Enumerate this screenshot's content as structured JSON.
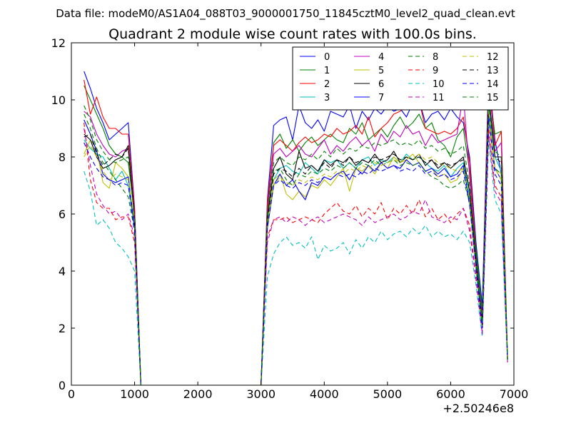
{
  "suptitle": "Data file: modeM0/AS1A04_088T03_9000001750_11845cztM0_level2_quad_clean.evt",
  "chart_data": {
    "type": "line",
    "title": "Quadrant 2 module wise count rates with 100.0s bins.",
    "xlabel": "",
    "ylabel": "",
    "x_offset_label": "+2.50246e8",
    "xlim": [
      0,
      7000
    ],
    "ylim": [
      0,
      12
    ],
    "x_ticks": [
      "0",
      "1000",
      "2000",
      "3000",
      "4000",
      "5000",
      "6000",
      "7000"
    ],
    "y_ticks": [
      "0",
      "2",
      "4",
      "6",
      "8",
      "10",
      "12"
    ],
    "grid": false,
    "legend_position": "top-right",
    "x": [
      200,
      300,
      400,
      500,
      600,
      700,
      800,
      900,
      1000,
      1100,
      1200,
      1300,
      1400,
      1500,
      1600,
      1700,
      1800,
      1900,
      2000,
      2100,
      2200,
      2300,
      2400,
      2500,
      2600,
      2700,
      2800,
      2900,
      3000,
      3100,
      3200,
      3300,
      3400,
      3500,
      3600,
      3700,
      3800,
      3900,
      4000,
      4100,
      4200,
      4300,
      4400,
      4500,
      4600,
      4700,
      4800,
      4900,
      5000,
      5100,
      5200,
      5300,
      5400,
      5500,
      5600,
      5700,
      5800,
      5900,
      6000,
      6100,
      6200,
      6300,
      6400,
      6500,
      6600,
      6700,
      6800,
      6900
    ],
    "series": [
      {
        "name": "0",
        "color": "#0000ff",
        "dash": "solid",
        "values": [
          11.0,
          10.4,
          9.7,
          9.2,
          8.6,
          8.8,
          9.0,
          9.2,
          6.2,
          0.0,
          0,
          0,
          0,
          0,
          0,
          0,
          0,
          0,
          0,
          0,
          0,
          0,
          0,
          0,
          0,
          0,
          0,
          0,
          0.0,
          6.5,
          9.1,
          9.3,
          9.4,
          8.6,
          9.8,
          9.2,
          9.0,
          9.3,
          8.9,
          9.6,
          9.5,
          9.4,
          9.8,
          9.0,
          9.6,
          9.3,
          9.7,
          9.5,
          9.8,
          9.6,
          9.7,
          9.4,
          9.9,
          10.0,
          9.2,
          9.5,
          9.6,
          9.3,
          9.7,
          9.4,
          9.2,
          8.0,
          5.0,
          2.8,
          11.0,
          8.6,
          7.4,
          1.0
        ]
      },
      {
        "name": "1",
        "color": "#008000",
        "dash": "solid",
        "values": [
          10.5,
          10.0,
          9.5,
          9.0,
          8.4,
          8.1,
          8.0,
          7.8,
          6.0,
          0.0,
          0,
          0,
          0,
          0,
          0,
          0,
          0,
          0,
          0,
          0,
          0,
          0,
          0,
          0,
          0,
          0,
          0,
          0,
          0.0,
          6.2,
          8.5,
          8.8,
          8.3,
          8.6,
          8.2,
          8.5,
          8.7,
          8.4,
          8.6,
          8.8,
          8.6,
          8.5,
          9.0,
          8.8,
          9.2,
          8.6,
          8.8,
          9.0,
          8.7,
          9.1,
          9.4,
          9.0,
          9.2,
          9.5,
          9.0,
          9.2,
          8.6,
          8.4,
          8.0,
          8.7,
          9.0,
          7.5,
          4.8,
          2.6,
          10.5,
          8.8,
          8.9,
          1.0
        ]
      },
      {
        "name": "2",
        "color": "#ff0000",
        "dash": "solid",
        "values": [
          10.7,
          9.5,
          10.1,
          9.4,
          9.0,
          9.0,
          8.8,
          8.8,
          6.1,
          0.0,
          0,
          0,
          0,
          0,
          0,
          0,
          0,
          0,
          0,
          0,
          0,
          0,
          0,
          0,
          0,
          0,
          0,
          0,
          0.0,
          6.4,
          8.4,
          8.6,
          8.4,
          8.2,
          8.5,
          8.7,
          8.5,
          8.6,
          8.8,
          8.7,
          9.0,
          8.8,
          8.9,
          9.1,
          8.8,
          9.4,
          8.7,
          9.0,
          9.2,
          9.5,
          9.6,
          9.8,
          9.9,
          10.0,
          9.0,
          8.9,
          8.8,
          8.9,
          8.8,
          9.0,
          9.4,
          7.8,
          4.6,
          2.2,
          11.0,
          8.4,
          8.9,
          0.8
        ]
      },
      {
        "name": "3",
        "color": "#00bfbf",
        "dash": "solid",
        "values": [
          8.6,
          8.3,
          8.1,
          8.0,
          7.6,
          7.2,
          7.5,
          7.0,
          5.5,
          0.0,
          0,
          0,
          0,
          0,
          0,
          0,
          0,
          0,
          0,
          0,
          0,
          0,
          0,
          0,
          0,
          0,
          0,
          0,
          0.0,
          5.8,
          7.2,
          7.6,
          7.7,
          7.5,
          7.4,
          7.8,
          7.6,
          7.4,
          7.9,
          7.8,
          7.9,
          7.6,
          7.8,
          7.6,
          7.9,
          8.0,
          7.7,
          7.9,
          7.8,
          8.0,
          7.8,
          8.1,
          7.9,
          8.0,
          7.8,
          7.6,
          7.5,
          7.7,
          7.3,
          7.6,
          7.8,
          6.6,
          4.4,
          2.2,
          9.8,
          8.0,
          7.5,
          0.9
        ]
      },
      {
        "name": "4",
        "color": "#bf00bf",
        "dash": "solid",
        "values": [
          9.6,
          9.4,
          8.8,
          8.4,
          8.1,
          8.0,
          8.2,
          8.3,
          5.9,
          0.0,
          0,
          0,
          0,
          0,
          0,
          0,
          0,
          0,
          0,
          0,
          0,
          0,
          0,
          0,
          0,
          0,
          0,
          0,
          0.0,
          6.1,
          8.1,
          8.3,
          8.0,
          8.2,
          8.4,
          8.1,
          8.0,
          8.3,
          8.6,
          8.1,
          8.4,
          8.2,
          8.5,
          8.7,
          8.4,
          8.6,
          8.2,
          8.8,
          8.5,
          8.9,
          8.7,
          9.1,
          8.8,
          8.9,
          8.4,
          8.8,
          8.5,
          8.6,
          8.7,
          8.8,
          10.2,
          7.3,
          4.5,
          2.4,
          10.8,
          8.2,
          8.5,
          0.9
        ]
      },
      {
        "name": "5",
        "color": "#bfbf00",
        "dash": "solid",
        "values": [
          8.1,
          8.6,
          8.3,
          7.1,
          6.9,
          7.8,
          7.6,
          7.3,
          5.6,
          0.0,
          0,
          0,
          0,
          0,
          0,
          0,
          0,
          0,
          0,
          0,
          0,
          0,
          0,
          0,
          0,
          0,
          0,
          0,
          0.0,
          5.6,
          7.2,
          7.4,
          6.7,
          6.5,
          6.8,
          6.6,
          7.0,
          6.9,
          7.2,
          7.0,
          7.3,
          7.6,
          6.8,
          7.6,
          7.5,
          7.7,
          7.4,
          7.8,
          7.6,
          8.0,
          7.8,
          7.9,
          8.1,
          7.8,
          7.5,
          7.6,
          7.3,
          7.4,
          7.1,
          7.2,
          7.6,
          6.4,
          4.3,
          2.1,
          9.6,
          7.6,
          7.4,
          0.9
        ]
      },
      {
        "name": "6",
        "color": "#000000",
        "dash": "solid",
        "values": [
          8.8,
          8.6,
          8.0,
          7.6,
          7.7,
          7.9,
          8.0,
          8.4,
          5.8,
          0.0,
          0,
          0,
          0,
          0,
          0,
          0,
          0,
          0,
          0,
          0,
          0,
          0,
          0,
          0,
          0,
          0,
          0,
          0,
          0.0,
          5.9,
          7.6,
          8.0,
          7.4,
          7.2,
          8.2,
          7.6,
          7.7,
          7.5,
          7.9,
          7.7,
          7.9,
          7.8,
          8.0,
          7.7,
          7.9,
          7.8,
          8.1,
          7.8,
          7.9,
          8.2,
          7.8,
          8.0,
          7.9,
          8.1,
          7.7,
          7.9,
          7.6,
          7.8,
          7.6,
          7.8,
          8.0,
          6.8,
          4.4,
          2.2,
          10.2,
          8.0,
          8.0,
          0.9
        ]
      },
      {
        "name": "7",
        "color": "#0000ff",
        "dash": "solid",
        "values": [
          9.3,
          8.8,
          8.2,
          7.4,
          7.2,
          7.1,
          7.2,
          7.3,
          5.5,
          0.0,
          0,
          0,
          0,
          0,
          0,
          0,
          0,
          0,
          0,
          0,
          0,
          0,
          0,
          0,
          0,
          0,
          0,
          0,
          0.0,
          5.5,
          7.0,
          7.4,
          7.0,
          7.2,
          6.8,
          6.5,
          7.1,
          7.0,
          7.3,
          7.2,
          7.4,
          7.5,
          7.2,
          7.6,
          7.4,
          7.7,
          7.5,
          7.8,
          7.6,
          7.7,
          7.6,
          7.9,
          7.7,
          7.8,
          7.5,
          7.6,
          7.4,
          7.6,
          7.3,
          7.4,
          7.7,
          6.4,
          4.2,
          2.0,
          9.5,
          7.6,
          7.2,
          0.9
        ]
      },
      {
        "name": "8",
        "color": "#008000",
        "dash": "dashed",
        "values": [
          9.5,
          9.0,
          8.3,
          7.8,
          7.5,
          7.2,
          6.9,
          6.6,
          5.4,
          0.0,
          0,
          0,
          0,
          0,
          0,
          0,
          0,
          0,
          0,
          0,
          0,
          0,
          0,
          0,
          0,
          0,
          0,
          0,
          0.0,
          5.8,
          7.5,
          7.6,
          7.2,
          7.0,
          7.4,
          7.3,
          7.5,
          7.4,
          7.6,
          7.5,
          7.7,
          7.6,
          7.8,
          7.6,
          7.8,
          7.7,
          7.9,
          7.7,
          7.8,
          7.9,
          7.7,
          7.8,
          7.7,
          7.8,
          7.5,
          7.3,
          7.2,
          7.0,
          6.9,
          7.0,
          7.2,
          6.4,
          4.1,
          2.0,
          9.4,
          7.6,
          7.4,
          0.9
        ]
      },
      {
        "name": "9",
        "color": "#ff0000",
        "dash": "dashed",
        "values": [
          9.2,
          7.2,
          6.4,
          6.2,
          6.2,
          5.8,
          5.9,
          5.9,
          5.0,
          0.0,
          0,
          0,
          0,
          0,
          0,
          0,
          0,
          0,
          0,
          0,
          0,
          0,
          0,
          0,
          0,
          0,
          0,
          0,
          0.0,
          5.2,
          5.8,
          5.8,
          5.9,
          5.7,
          5.8,
          5.9,
          5.8,
          5.7,
          6.0,
          6.2,
          6.4,
          6.1,
          6.0,
          6.3,
          5.9,
          6.2,
          6.0,
          6.4,
          5.8,
          6.2,
          6.0,
          6.3,
          6.0,
          6.5,
          5.9,
          6.2,
          5.8,
          6.0,
          5.7,
          6.0,
          6.2,
          5.6,
          3.8,
          1.8,
          9.0,
          7.0,
          6.6,
          0.8
        ]
      },
      {
        "name": "10",
        "color": "#00bfbf",
        "dash": "dashed",
        "values": [
          7.5,
          6.8,
          5.6,
          5.8,
          5.5,
          5.0,
          4.8,
          4.5,
          4.0,
          0.0,
          0,
          0,
          0,
          0,
          0,
          0,
          0,
          0,
          0,
          0,
          0,
          0,
          0,
          0,
          0,
          0,
          0,
          0,
          0.0,
          3.8,
          4.6,
          5.0,
          5.2,
          4.9,
          5.0,
          4.8,
          5.2,
          4.4,
          4.9,
          4.7,
          4.8,
          5.0,
          4.6,
          5.1,
          4.8,
          5.2,
          5.0,
          5.4,
          5.1,
          5.3,
          5.4,
          5.2,
          5.5,
          5.3,
          5.6,
          5.2,
          5.4,
          5.2,
          5.3,
          5.1,
          5.4,
          5.0,
          3.5,
          1.7,
          8.6,
          6.5,
          6.0,
          0.8
        ]
      },
      {
        "name": "11",
        "color": "#bf00bf",
        "dash": "dashed",
        "values": [
          9.0,
          7.7,
          6.7,
          6.3,
          6.0,
          6.1,
          5.8,
          6.0,
          5.2,
          0.0,
          0,
          0,
          0,
          0,
          0,
          0,
          0,
          0,
          0,
          0,
          0,
          0,
          0,
          0,
          0,
          0,
          0,
          0,
          0.0,
          5.0,
          5.8,
          5.9,
          5.7,
          5.9,
          5.8,
          5.6,
          5.8,
          5.9,
          5.7,
          5.8,
          5.9,
          6.0,
          5.9,
          5.8,
          5.6,
          5.9,
          5.7,
          5.8,
          5.9,
          6.0,
          5.8,
          5.9,
          6.1,
          6.0,
          6.5,
          5.9,
          5.8,
          5.7,
          5.9,
          5.8,
          6.2,
          5.4,
          3.7,
          1.8,
          8.8,
          6.8,
          6.4,
          0.8
        ]
      },
      {
        "name": "12",
        "color": "#bfbf00",
        "dash": "dashed",
        "values": [
          8.0,
          8.4,
          8.0,
          7.5,
          7.2,
          7.4,
          7.3,
          7.2,
          5.7,
          0.0,
          0,
          0,
          0,
          0,
          0,
          0,
          0,
          0,
          0,
          0,
          0,
          0,
          0,
          0,
          0,
          0,
          0,
          0,
          0.0,
          5.6,
          7.0,
          7.3,
          7.1,
          7.0,
          7.2,
          7.1,
          7.3,
          7.2,
          7.4,
          7.3,
          7.5,
          7.4,
          7.6,
          7.5,
          7.7,
          7.6,
          7.8,
          7.7,
          7.8,
          7.9,
          7.8,
          8.0,
          7.9,
          8.1,
          7.9,
          8.0,
          7.8,
          7.7,
          7.6,
          7.5,
          7.6,
          6.5,
          4.2,
          2.0,
          9.6,
          7.6,
          7.2,
          0.9
        ]
      },
      {
        "name": "13",
        "color": "#000000",
        "dash": "dashed",
        "values": [
          8.7,
          8.8,
          8.1,
          7.7,
          7.9,
          8.1,
          8.0,
          8.3,
          5.8,
          0.0,
          0,
          0,
          0,
          0,
          0,
          0,
          0,
          0,
          0,
          0,
          0,
          0,
          0,
          0,
          0,
          0,
          0,
          0,
          0.0,
          5.8,
          7.4,
          7.6,
          7.5,
          7.3,
          7.6,
          7.4,
          7.7,
          7.5,
          7.8,
          7.6,
          7.9,
          7.7,
          8.0,
          7.8,
          7.9,
          7.8,
          8.0,
          7.9,
          8.0,
          8.1,
          7.9,
          8.0,
          7.9,
          8.0,
          7.8,
          7.9,
          7.7,
          7.8,
          7.7,
          7.8,
          7.9,
          6.8,
          4.4,
          2.1,
          10.0,
          8.0,
          7.8,
          0.9
        ]
      },
      {
        "name": "14",
        "color": "#0000ff",
        "dash": "dashed",
        "values": [
          8.5,
          8.0,
          7.6,
          7.3,
          7.2,
          7.0,
          7.1,
          7.0,
          5.4,
          0.0,
          0,
          0,
          0,
          0,
          0,
          0,
          0,
          0,
          0,
          0,
          0,
          0,
          0,
          0,
          0,
          0,
          0,
          0,
          0.0,
          5.5,
          7.0,
          7.2,
          7.0,
          6.9,
          7.1,
          7.0,
          7.2,
          7.1,
          7.3,
          7.2,
          7.4,
          7.3,
          7.4,
          7.3,
          7.5,
          7.4,
          7.6,
          7.5,
          7.6,
          7.7,
          7.5,
          7.6,
          7.5,
          7.7,
          7.4,
          7.5,
          7.3,
          7.4,
          7.2,
          7.3,
          7.5,
          6.3,
          4.1,
          2.0,
          9.4,
          7.4,
          7.0,
          0.9
        ]
      },
      {
        "name": "15",
        "color": "#008000",
        "dash": "dashed",
        "values": [
          9.8,
          9.3,
          8.6,
          8.2,
          7.9,
          7.8,
          7.9,
          8.0,
          5.8,
          0.0,
          0,
          0,
          0,
          0,
          0,
          0,
          0,
          0,
          0,
          0,
          0,
          0,
          0,
          0,
          0,
          0,
          0,
          0,
          0.0,
          6.0,
          7.8,
          8.0,
          7.8,
          7.7,
          8.0,
          7.9,
          8.1,
          7.9,
          8.2,
          8.0,
          8.3,
          8.1,
          8.3,
          8.2,
          8.4,
          8.3,
          8.5,
          8.4,
          8.5,
          8.6,
          8.4,
          8.5,
          8.4,
          8.6,
          8.3,
          8.4,
          8.2,
          8.3,
          8.1,
          8.2,
          8.4,
          7.0,
          4.6,
          2.2,
          10.2,
          8.2,
          8.0,
          0.9
        ]
      }
    ]
  }
}
